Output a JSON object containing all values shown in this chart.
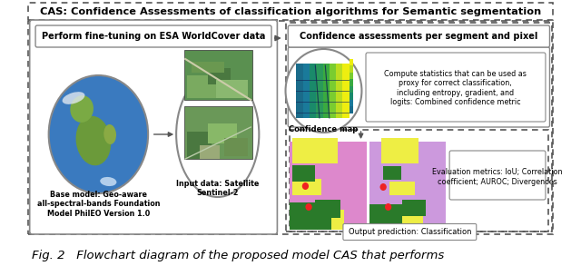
{
  "title": "CAS: Confidence Assessments of classification algorithms for Semantic segmentation",
  "caption": "Fig. 2   Flowchart diagram of the proposed model CAS that performs",
  "left_box_title": "Perform fine-tuning on ESA WorldCover data",
  "right_box_title": "Confidence assessments per segment and pixel",
  "left_caption1": "Base model: Geo-aware\nall-spectral-bands Foundation\nModel PhilEO Version 1.0",
  "left_caption2": "Input data: Satellite\nSentinel-2",
  "confidence_label": "Confidence map",
  "right_text1": "Compute statistics that can be used as\nproxy for correct classification,\nincluding entropy, gradient, and\nlogits: Combined confidence metric",
  "right_text2": "Evaluation metrics: IoU; Correlation\ncoefficient; AUROC; Divergences",
  "output_label": "Output prediction: Classification",
  "bg_color": "#ffffff",
  "text_color": "#000000"
}
